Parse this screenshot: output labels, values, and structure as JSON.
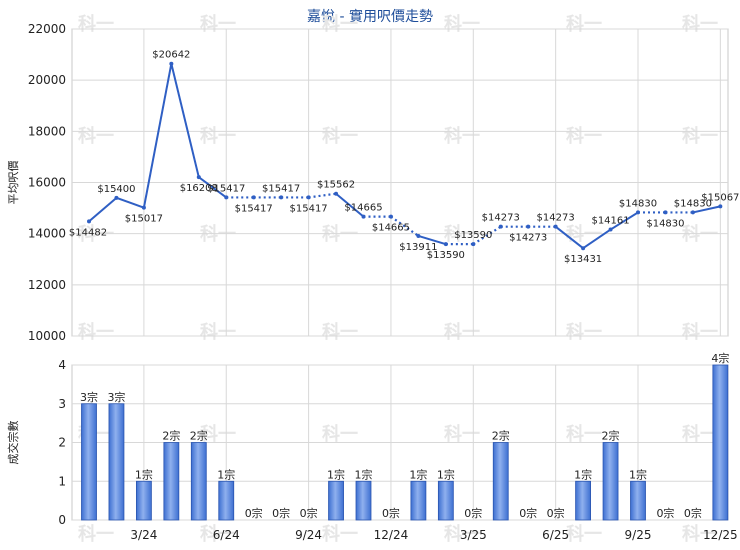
{
  "title": "嘉悅 - 實用呎價走勢",
  "watermark": "科一",
  "colors": {
    "line": "#2f5fc4",
    "bar": "#3d6fd1",
    "bar_light": "#8fb0ee",
    "grid": "#d8d8d8",
    "title": "#1f4e9a"
  },
  "chart_data": [
    {
      "type": "line",
      "ylabel": "平均呎價",
      "ylim": [
        10000,
        22000
      ],
      "yticks": [
        "10000",
        "12000",
        "14000",
        "16000",
        "18000",
        "20000",
        "22000"
      ],
      "values": [
        14482,
        15400,
        15017,
        20642,
        16208,
        15417,
        15417,
        15417,
        15417,
        15562,
        14665,
        14665,
        13911,
        13590,
        13590,
        14273,
        14273,
        14273,
        13431,
        14161,
        14830,
        14830,
        14830,
        15067
      ],
      "labels": [
        "$14482",
        "$15400",
        "$15017",
        "$20642",
        "$16208",
        "$15417",
        "$15417",
        "$15417",
        "$15417",
        "$15562",
        "$14665",
        "$14665",
        "$13911",
        "$13590",
        "$13590",
        "$14273",
        "$14273",
        "$14273",
        "$13431",
        "$14161",
        "$14830",
        "$14830",
        "$14830",
        "$15067"
      ],
      "interpolated": [
        false,
        false,
        false,
        false,
        false,
        false,
        true,
        false,
        true,
        false,
        false,
        true,
        false,
        false,
        true,
        false,
        true,
        false,
        false,
        false,
        false,
        true,
        false,
        false
      ],
      "grid": true
    },
    {
      "type": "bar",
      "ylabel": "成交宗數",
      "ylim": [
        0,
        4
      ],
      "yticks": [
        "0",
        "1",
        "2",
        "3",
        "4"
      ],
      "values": [
        3,
        3,
        1,
        2,
        2,
        1,
        0,
        0,
        0,
        1,
        1,
        0,
        1,
        1,
        0,
        2,
        0,
        0,
        1,
        2,
        1,
        0,
        0,
        4
      ],
      "labels": [
        "3宗",
        "3宗",
        "1宗",
        "2宗",
        "2宗",
        "1宗",
        "0宗",
        "0宗",
        "0宗",
        "1宗",
        "1宗",
        "0宗",
        "1宗",
        "1宗",
        "0宗",
        "2宗",
        "0宗",
        "0宗",
        "1宗",
        "2宗",
        "1宗",
        "0宗",
        "0宗",
        "4宗"
      ],
      "x_tick_labels": [
        "3/24",
        "6/24",
        "9/24",
        "12/24",
        "3/25",
        "6/25",
        "9/25",
        "12/25"
      ],
      "grid": true
    }
  ]
}
